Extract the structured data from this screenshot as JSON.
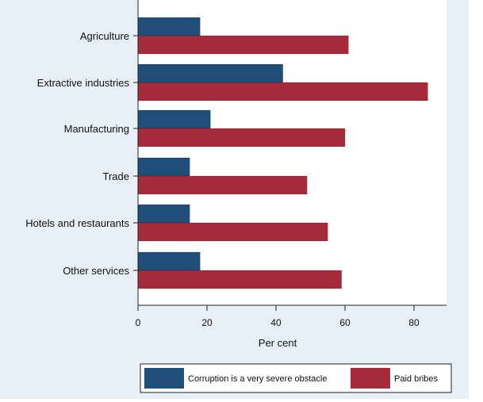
{
  "chart_data": {
    "type": "bar",
    "orientation": "horizontal",
    "categories": [
      "Agriculture",
      "Extractive industries",
      "Manufacturing",
      "Trade",
      "Hotels and restaurants",
      "Other services"
    ],
    "series": [
      {
        "name": "Corruption is a very severe obstacle",
        "color": "#1f4e79",
        "values": [
          18,
          42,
          21,
          15,
          15,
          18
        ]
      },
      {
        "name": "Paid bribes",
        "color": "#a52a3a",
        "values": [
          61,
          84,
          60,
          49,
          55,
          59
        ]
      }
    ],
    "xlabel": "Per cent",
    "ylabel": "",
    "xlim": [
      0,
      88
    ],
    "xticks": [
      0,
      20,
      40,
      60,
      80
    ],
    "grid": false,
    "legend_position": "bottom"
  }
}
